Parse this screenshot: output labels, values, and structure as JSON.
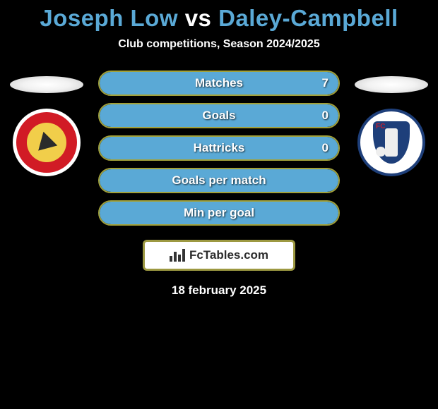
{
  "title": {
    "player1": "Joseph Low",
    "vs": "vs",
    "player2": "Daley-Campbell"
  },
  "subtitle": "Club competitions, Season 2024/2025",
  "colors": {
    "player1_accent": "#a2a13a",
    "player2_accent": "#5aa9d6",
    "title_p1": "#5aa9d6",
    "title_p2": "#5aa9d6",
    "background": "#000000"
  },
  "player1": {
    "name": "Joseph Low",
    "club_icon": "walsall"
  },
  "player2": {
    "name": "Daley-Campbell",
    "club_icon": "chesterfield"
  },
  "stats": [
    {
      "label": "Matches",
      "left_val": "",
      "right_val": "7",
      "left_pct": 0,
      "right_pct": 100,
      "right_color": "#5aa9d6"
    },
    {
      "label": "Goals",
      "left_val": "",
      "right_val": "0",
      "left_pct": 0,
      "right_pct": 100,
      "right_color": "#5aa9d6"
    },
    {
      "label": "Hattricks",
      "left_val": "",
      "right_val": "0",
      "left_pct": 0,
      "right_pct": 100,
      "right_color": "#5aa9d6"
    },
    {
      "label": "Goals per match",
      "left_val": "",
      "right_val": "",
      "left_pct": 0,
      "right_pct": 100,
      "right_color": "#5aa9d6"
    },
    {
      "label": "Min per goal",
      "left_val": "",
      "right_val": "",
      "left_pct": 0,
      "right_pct": 100,
      "right_color": "#5aa9d6"
    }
  ],
  "brand": "FcTables.com",
  "date": "18 february 2025",
  "layout": {
    "stat_row_height": 36,
    "stat_row_radius": 18,
    "stat_border_color": "#a2a13a",
    "font_family": "Arial",
    "title_fontsize": 33,
    "label_fontsize": 17
  }
}
